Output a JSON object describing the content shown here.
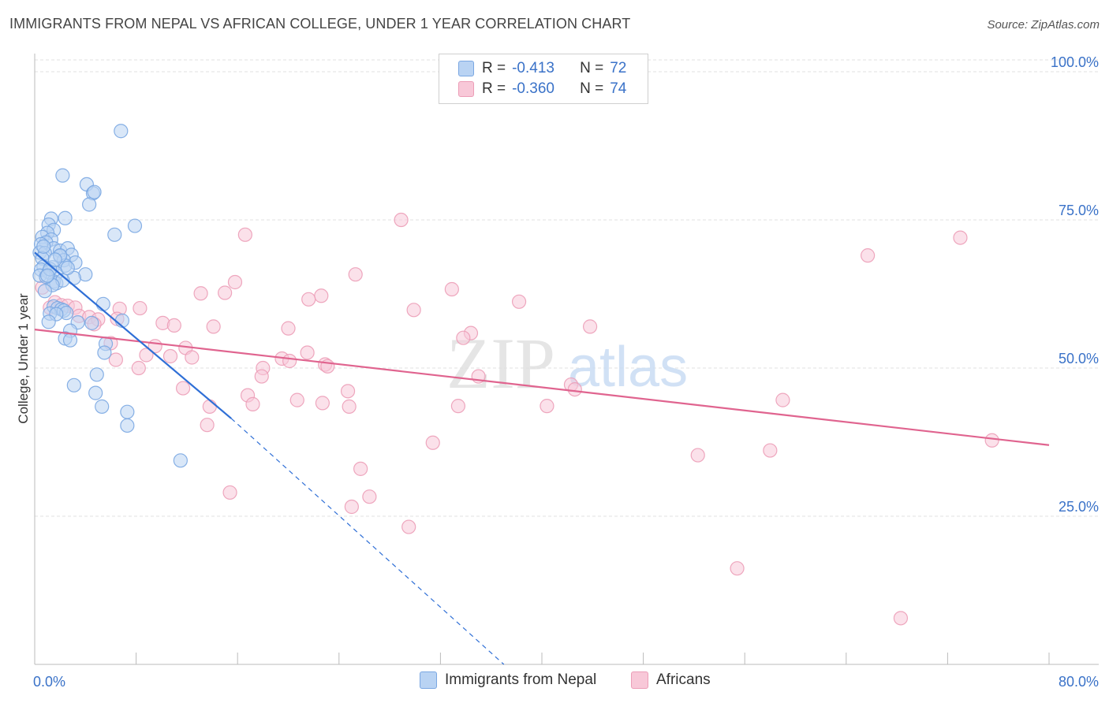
{
  "header": {
    "title": "IMMIGRANTS FROM NEPAL VS AFRICAN COLLEGE, UNDER 1 YEAR CORRELATION CHART",
    "source": "Source: ZipAtlas.com"
  },
  "watermark": {
    "zip": "ZIP",
    "atlas": "atlas"
  },
  "legend": {
    "r_label": "R =",
    "n_label": "N =",
    "rows": [
      {
        "name": "Immigrants from Nepal",
        "r": "-0.413",
        "n": "72",
        "color": "#8ab4ea",
        "fill": "#b9d3f3",
        "stroke": "#7aa7e2"
      },
      {
        "name": "Africans",
        "r": "-0.360",
        "n": "74",
        "color": "#f2a1bb",
        "fill": "#f8c8d8",
        "stroke": "#ec9db7"
      }
    ]
  },
  "colors": {
    "nepal_line": "#2f6fd6",
    "african_line": "#e0648f",
    "axis_text": "#3a72c8",
    "grid": "#e2e2e2"
  },
  "chart_data": {
    "type": "scatter",
    "title": "IMMIGRANTS FROM NEPAL VS AFRICAN COLLEGE, UNDER 1 YEAR CORRELATION CHART",
    "xlabel": "",
    "ylabel": "College, Under 1 year",
    "xlim": [
      0,
      80
    ],
    "ylim": [
      0,
      102
    ],
    "x_tick_labels": [
      {
        "value": 0,
        "label": "0.0%"
      },
      {
        "value": 80,
        "label": "80.0%"
      }
    ],
    "y_tick_labels": [
      {
        "value": 25,
        "label": "25.0%"
      },
      {
        "value": 50,
        "label": "50.0%"
      },
      {
        "value": 75,
        "label": "75.0%"
      },
      {
        "value": 100,
        "label": "100.0%"
      }
    ],
    "series": [
      {
        "name": "Immigrants from Nepal",
        "r": -0.413,
        "n": 72,
        "trend": {
          "x0": 0,
          "y0": 69.5,
          "x1": 15.5,
          "y1": 41.5,
          "dash_x1": 37,
          "dash_y1": 0
        },
        "points": [
          [
            6.8,
            90
          ],
          [
            2.2,
            82.5
          ],
          [
            4.1,
            81
          ],
          [
            4.6,
            79.5
          ],
          [
            4.7,
            79.7
          ],
          [
            4.3,
            77.6
          ],
          [
            1.3,
            75.2
          ],
          [
            2.4,
            75.3
          ],
          [
            1.1,
            74.2
          ],
          [
            7.9,
            74
          ],
          [
            1.5,
            73.3
          ],
          [
            1.0,
            72.8
          ],
          [
            6.3,
            72.5
          ],
          [
            0.6,
            72.1
          ],
          [
            1.3,
            71.7
          ],
          [
            0.9,
            71.2
          ],
          [
            0.5,
            70.9
          ],
          [
            1.5,
            70.2
          ],
          [
            2.0,
            69.8
          ],
          [
            0.4,
            69.5
          ],
          [
            2.6,
            70.2
          ],
          [
            0.8,
            69.4
          ],
          [
            2.0,
            68.9
          ],
          [
            2.9,
            69.1
          ],
          [
            0.6,
            68.5
          ],
          [
            2.3,
            68.2
          ],
          [
            3.2,
            67.8
          ],
          [
            2.4,
            67.3
          ],
          [
            0.7,
            67.1
          ],
          [
            1.4,
            67.0
          ],
          [
            0.5,
            66.6
          ],
          [
            1.1,
            66.2
          ],
          [
            1.7,
            66.0
          ],
          [
            4.0,
            65.8
          ],
          [
            0.4,
            65.6
          ],
          [
            3.1,
            65.2
          ],
          [
            1.5,
            64.6
          ],
          [
            1.7,
            64.3
          ],
          [
            2.2,
            64.8
          ],
          [
            1.4,
            64.0
          ],
          [
            0.8,
            63.0
          ],
          [
            5.4,
            60.8
          ],
          [
            1.5,
            60.4
          ],
          [
            1.8,
            60.1
          ],
          [
            2.1,
            59.9
          ],
          [
            2.3,
            59.7
          ],
          [
            2.5,
            59.3
          ],
          [
            1.2,
            59.2
          ],
          [
            1.7,
            59.1
          ],
          [
            6.9,
            58.0
          ],
          [
            1.1,
            57.8
          ],
          [
            3.4,
            57.7
          ],
          [
            4.5,
            57.6
          ],
          [
            2.8,
            56.3
          ],
          [
            2.4,
            55.0
          ],
          [
            2.8,
            54.7
          ],
          [
            5.6,
            54.1
          ],
          [
            5.5,
            52.6
          ],
          [
            4.9,
            48.9
          ],
          [
            3.1,
            47.1
          ],
          [
            4.8,
            45.8
          ],
          [
            5.3,
            43.5
          ],
          [
            7.3,
            42.6
          ],
          [
            7.3,
            40.3
          ],
          [
            11.5,
            34.4
          ],
          [
            0.9,
            65.4
          ],
          [
            1.2,
            66.7
          ],
          [
            2.0,
            69.0
          ],
          [
            0.7,
            70.5
          ],
          [
            1.0,
            65.6
          ],
          [
            2.6,
            66.9
          ],
          [
            1.6,
            68.3
          ]
        ]
      },
      {
        "name": "Africans",
        "r": -0.36,
        "n": 74,
        "trend": {
          "x0": 0,
          "y0": 56.5,
          "x1": 80,
          "y1": 37.0
        },
        "points": [
          [
            28.9,
            75.0
          ],
          [
            16.6,
            72.5
          ],
          [
            73.0,
            72.0
          ],
          [
            65.7,
            69.0
          ],
          [
            25.3,
            65.8
          ],
          [
            15.8,
            64.5
          ],
          [
            13.1,
            62.6
          ],
          [
            15.0,
            62.7
          ],
          [
            22.6,
            62.2
          ],
          [
            21.6,
            61.6
          ],
          [
            32.9,
            63.3
          ],
          [
            38.2,
            61.2
          ],
          [
            1.6,
            61.1
          ],
          [
            2.1,
            60.6
          ],
          [
            2.6,
            60.5
          ],
          [
            1.2,
            60.2
          ],
          [
            3.2,
            60.2
          ],
          [
            6.7,
            60.0
          ],
          [
            8.3,
            60.1
          ],
          [
            29.9,
            59.8
          ],
          [
            0.6,
            63.6
          ],
          [
            3.5,
            58.8
          ],
          [
            4.3,
            58.6
          ],
          [
            5.0,
            58.2
          ],
          [
            6.5,
            58.3
          ],
          [
            4.7,
            57.4
          ],
          [
            10.1,
            57.6
          ],
          [
            14.1,
            57.0
          ],
          [
            11.0,
            57.2
          ],
          [
            20.0,
            56.7
          ],
          [
            43.8,
            57.0
          ],
          [
            34.4,
            55.9
          ],
          [
            33.8,
            55.1
          ],
          [
            6.0,
            54.2
          ],
          [
            9.5,
            53.7
          ],
          [
            11.9,
            53.4
          ],
          [
            21.5,
            52.6
          ],
          [
            8.8,
            52.2
          ],
          [
            10.7,
            52.0
          ],
          [
            12.4,
            51.8
          ],
          [
            6.4,
            51.4
          ],
          [
            19.5,
            51.6
          ],
          [
            20.1,
            51.2
          ],
          [
            22.9,
            50.6
          ],
          [
            23.1,
            50.3
          ],
          [
            18.0,
            50.0
          ],
          [
            8.2,
            50.0
          ],
          [
            17.9,
            48.6
          ],
          [
            35.0,
            48.6
          ],
          [
            42.3,
            47.2
          ],
          [
            42.6,
            46.4
          ],
          [
            24.7,
            46.1
          ],
          [
            11.7,
            46.6
          ],
          [
            16.8,
            45.4
          ],
          [
            59.0,
            44.6
          ],
          [
            20.7,
            44.6
          ],
          [
            22.7,
            44.1
          ],
          [
            17.2,
            43.9
          ],
          [
            13.8,
            43.5
          ],
          [
            24.8,
            43.5
          ],
          [
            33.4,
            43.6
          ],
          [
            40.4,
            43.6
          ],
          [
            13.6,
            40.4
          ],
          [
            31.4,
            37.4
          ],
          [
            75.5,
            37.8
          ],
          [
            58.0,
            36.1
          ],
          [
            52.3,
            35.3
          ],
          [
            25.7,
            33.0
          ],
          [
            15.4,
            29.0
          ],
          [
            26.4,
            28.3
          ],
          [
            25.0,
            26.6
          ],
          [
            29.5,
            23.2
          ],
          [
            55.4,
            16.2
          ],
          [
            68.3,
            7.8
          ]
        ]
      }
    ]
  }
}
